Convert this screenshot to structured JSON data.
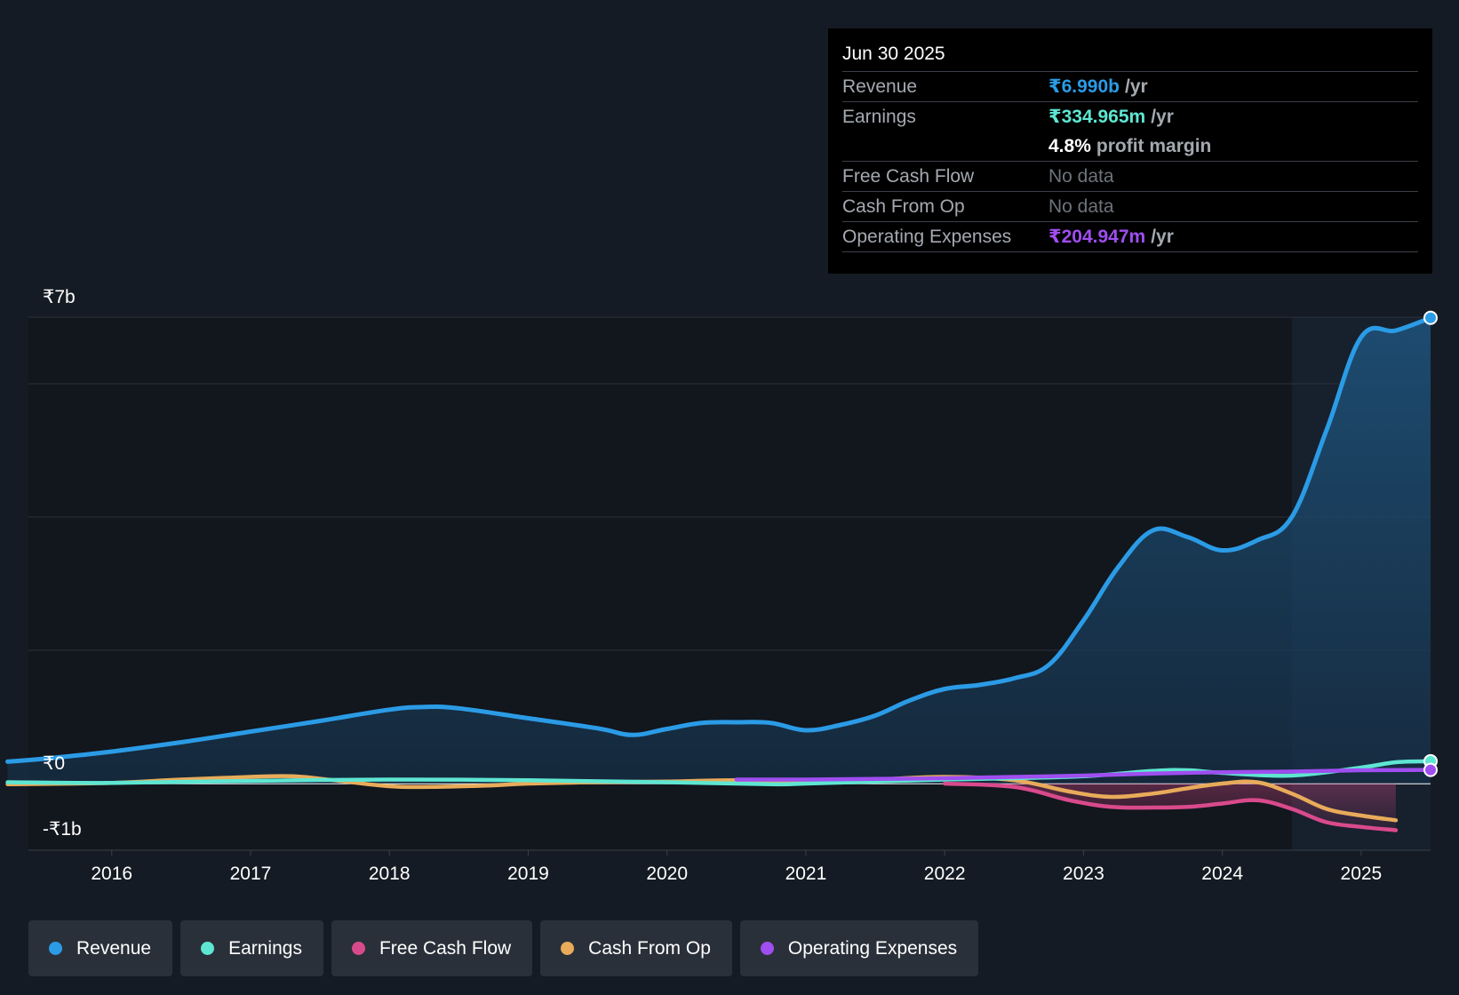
{
  "tooltip": {
    "date": "Jun 30 2025",
    "rows": {
      "revenue": {
        "label": "Revenue",
        "value": "₹6.990b",
        "unit": "/yr"
      },
      "earnings": {
        "label": "Earnings",
        "value": "₹334.965m",
        "unit": "/yr"
      },
      "margin": {
        "value": "4.8%",
        "unit": "profit margin"
      },
      "fcf": {
        "label": "Free Cash Flow",
        "value": "No data"
      },
      "cfo": {
        "label": "Cash From Op",
        "value": "No data"
      },
      "opex": {
        "label": "Operating Expenses",
        "value": "₹204.947m",
        "unit": "/yr"
      }
    }
  },
  "legend": {
    "revenue": "Revenue",
    "earnings": "Earnings",
    "fcf": "Free Cash Flow",
    "cfo": "Cash From Op",
    "opex": "Operating Expenses"
  },
  "colors": {
    "background": "#151b24",
    "revenue": "#2b9be6",
    "earnings": "#5ee6d2",
    "fcf": "#d94a8c",
    "cfo": "#e8ab5a",
    "opex": "#9f4ef0",
    "grid": "#2c323b",
    "axis": "#ffffff"
  },
  "chart_data": {
    "type": "line",
    "title": "",
    "y_labels": [
      {
        "value": 7,
        "text": "₹7b"
      },
      {
        "value": 0,
        "text": "₹0"
      },
      {
        "value": -1,
        "text": "-₹1b"
      }
    ],
    "ylim": [
      -1,
      7
    ],
    "xlim": [
      2015.4,
      2025.5
    ],
    "x_ticks": [
      2016,
      2017,
      2018,
      2019,
      2020,
      2021,
      2022,
      2023,
      2024,
      2025
    ],
    "x_tick_labels": [
      "2016",
      "2017",
      "2018",
      "2019",
      "2020",
      "2021",
      "2022",
      "2023",
      "2024",
      "2025"
    ],
    "grid_values": [
      7,
      6,
      4,
      2,
      0
    ],
    "highlight_from": 2024.5,
    "series": [
      {
        "key": "revenue",
        "name": "Revenue",
        "unit": "₹b",
        "area": true,
        "x": [
          2015.25,
          2015.5,
          2016,
          2016.5,
          2017,
          2017.5,
          2018,
          2018.25,
          2018.5,
          2019,
          2019.5,
          2019.75,
          2020,
          2020.25,
          2020.5,
          2020.75,
          2021,
          2021.25,
          2021.5,
          2021.75,
          2022,
          2022.25,
          2022.5,
          2022.75,
          2023,
          2023.25,
          2023.5,
          2023.75,
          2024,
          2024.25,
          2024.5,
          2024.75,
          2025,
          2025.25,
          2025.5
        ],
        "y": [
          0.33,
          0.37,
          0.48,
          0.62,
          0.78,
          0.94,
          1.11,
          1.15,
          1.13,
          0.98,
          0.83,
          0.73,
          0.82,
          0.91,
          0.92,
          0.91,
          0.8,
          0.88,
          1.02,
          1.25,
          1.42,
          1.48,
          1.58,
          1.78,
          2.45,
          3.25,
          3.8,
          3.7,
          3.5,
          3.65,
          4.0,
          5.3,
          6.7,
          6.8,
          6.99
        ]
      },
      {
        "key": "earnings",
        "name": "Earnings",
        "unit": "₹b",
        "x": [
          2015.25,
          2016,
          2017,
          2018,
          2019,
          2020,
          2020.75,
          2021,
          2021.5,
          2022,
          2022.5,
          2023,
          2023.5,
          2023.75,
          2024,
          2024.5,
          2025,
          2025.25,
          2025.5
        ],
        "y": [
          0.02,
          0.01,
          0.04,
          0.06,
          0.05,
          0.02,
          -0.01,
          0.0,
          0.03,
          0.06,
          0.08,
          0.11,
          0.19,
          0.2,
          0.16,
          0.12,
          0.24,
          0.32,
          0.335
        ]
      },
      {
        "key": "fcf",
        "name": "Free Cash Flow",
        "unit": "₹b",
        "area": true,
        "x": [
          2022,
          2022.5,
          2022.9,
          2023.2,
          2023.5,
          2023.75,
          2024,
          2024.25,
          2024.5,
          2024.75,
          2025,
          2025.25
        ],
        "y": [
          0.0,
          -0.05,
          -0.25,
          -0.35,
          -0.36,
          -0.35,
          -0.3,
          -0.25,
          -0.38,
          -0.58,
          -0.65,
          -0.7
        ]
      },
      {
        "key": "cfo",
        "name": "Cash From Op",
        "unit": "₹b",
        "x": [
          2015.25,
          2016,
          2016.5,
          2017,
          2017.3,
          2017.6,
          2018,
          2018.3,
          2018.7,
          2019,
          2019.5,
          2020,
          2020.5,
          2021,
          2021.5,
          2022,
          2022.5,
          2022.9,
          2023.2,
          2023.5,
          2023.75,
          2024,
          2024.25,
          2024.5,
          2024.75,
          2025,
          2025.25
        ],
        "y": [
          -0.01,
          0.01,
          0.06,
          0.1,
          0.11,
          0.05,
          -0.04,
          -0.05,
          -0.03,
          0.0,
          0.02,
          0.03,
          0.05,
          0.03,
          0.06,
          0.1,
          0.05,
          -0.12,
          -0.2,
          -0.15,
          -0.07,
          0.0,
          0.02,
          -0.15,
          -0.38,
          -0.48,
          -0.55
        ]
      },
      {
        "key": "opex",
        "name": "Operating Expenses",
        "unit": "₹b",
        "x": [
          2020.5,
          2021,
          2021.5,
          2022,
          2022.5,
          2023,
          2023.5,
          2024,
          2024.5,
          2025,
          2025.5
        ],
        "y": [
          0.06,
          0.06,
          0.07,
          0.08,
          0.1,
          0.12,
          0.15,
          0.17,
          0.18,
          0.2,
          0.205
        ]
      }
    ]
  }
}
